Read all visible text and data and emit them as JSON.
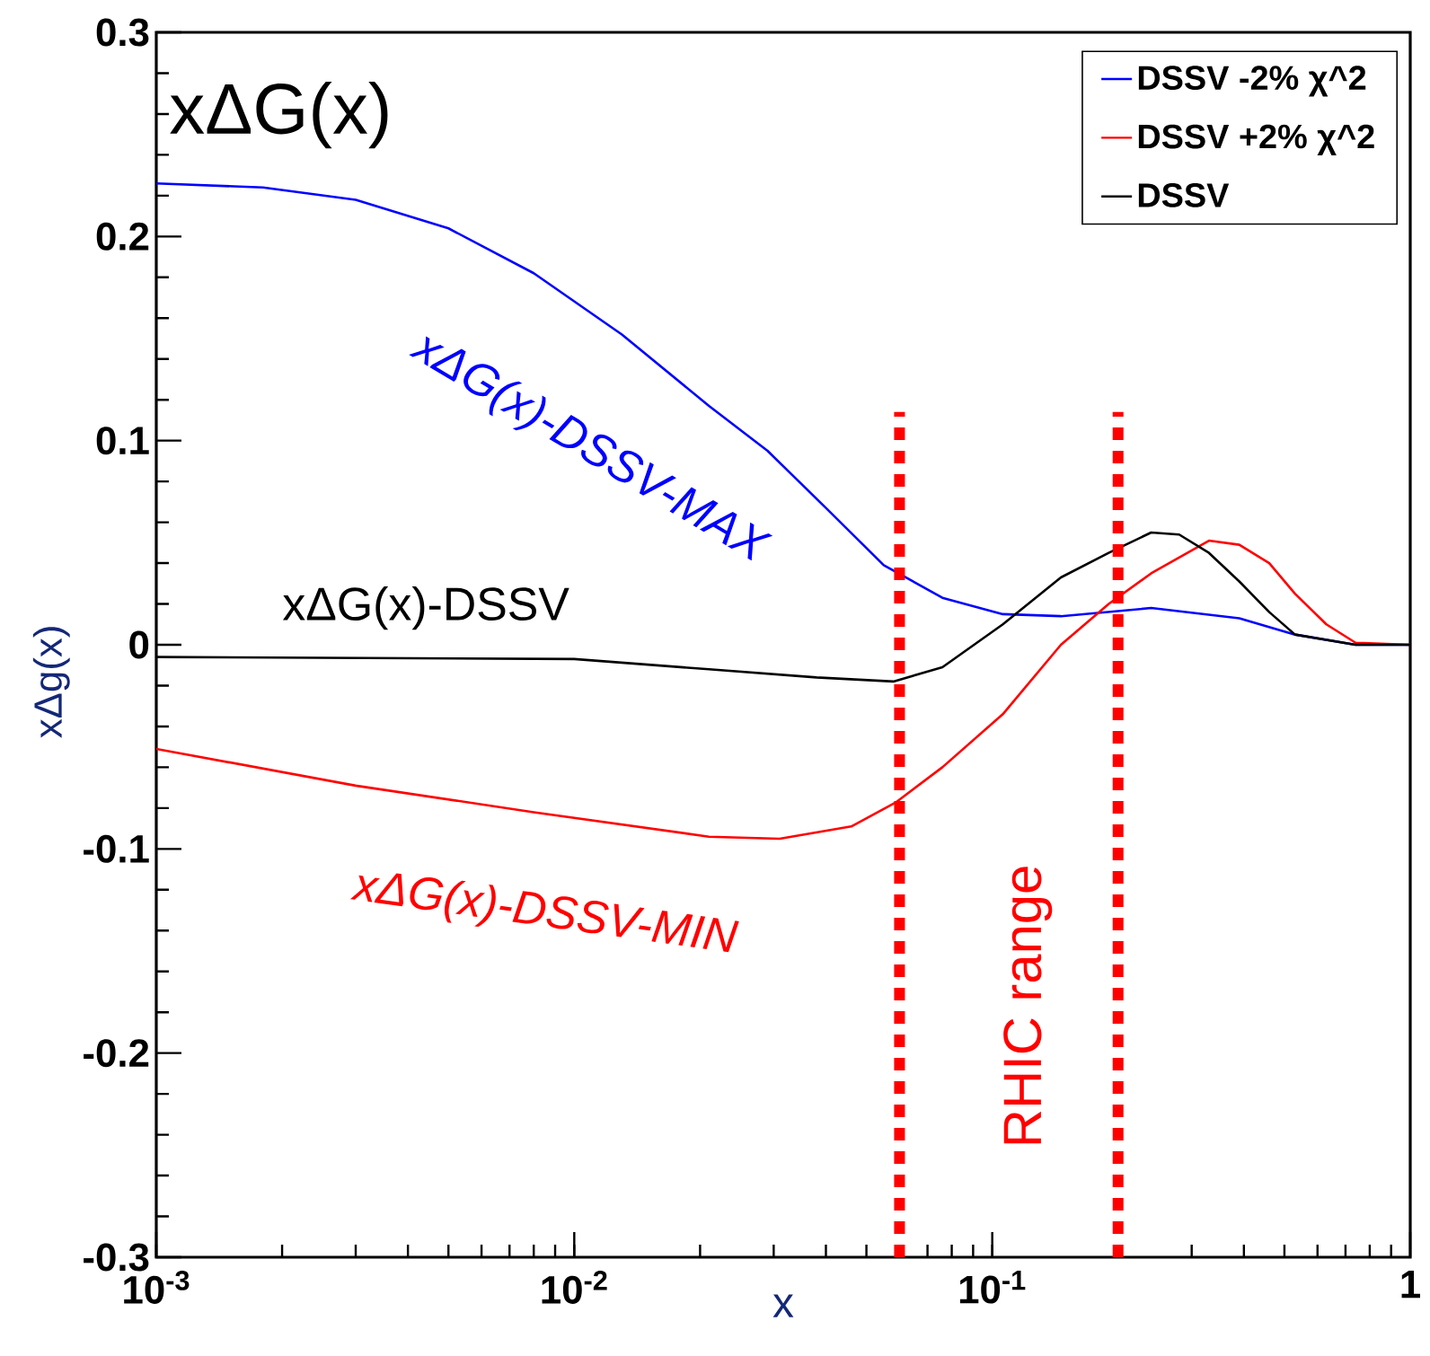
{
  "chart_data": {
    "type": "line",
    "title": "xΔG(x)",
    "xlabel": "x",
    "ylabel": "xΔg(x)",
    "log": "x",
    "xlim": [
      0.001,
      1
    ],
    "ylim": [
      -0.3,
      0.3
    ],
    "xticks": [
      {
        "value": 0.001,
        "label": "10$^{-3}$"
      },
      {
        "value": 0.01,
        "label": "10$^{-2}$"
      },
      {
        "value": 0.1,
        "label": "10$^{-1}$"
      },
      {
        "value": 1,
        "label": "1"
      }
    ],
    "yticks": [
      -0.3,
      -0.2,
      -0.1,
      0,
      0.1,
      0.2,
      0.3
    ],
    "legend": "top right",
    "series": [
      {
        "name": "DSSV -2% χ^2",
        "color": "#0000ff",
        "x": [
          0.001,
          0.0018,
          0.003,
          0.005,
          0.008,
          0.013,
          0.021,
          0.029,
          0.04,
          0.055,
          0.076,
          0.106,
          0.146,
          0.24,
          0.39,
          0.53,
          0.74,
          1
        ],
        "values": [
          0.226,
          0.224,
          0.218,
          0.204,
          0.182,
          0.152,
          0.117,
          0.095,
          0.067,
          0.039,
          0.023,
          0.015,
          0.014,
          0.018,
          0.013,
          0.005,
          0,
          0
        ]
      },
      {
        "name": "DSSV +2% χ^2",
        "color": "#ff0000",
        "x": [
          0.001,
          0.003,
          0.008,
          0.021,
          0.031,
          0.046,
          0.059,
          0.076,
          0.106,
          0.146,
          0.19,
          0.24,
          0.33,
          0.39,
          0.46,
          0.53,
          0.63,
          0.74,
          1
        ],
        "values": [
          -0.051,
          -0.069,
          -0.082,
          -0.094,
          -0.095,
          -0.089,
          -0.077,
          -0.06,
          -0.034,
          0,
          0.02,
          0.035,
          0.051,
          0.049,
          0.04,
          0.025,
          0.01,
          0.001,
          0
        ]
      },
      {
        "name": "DSSV",
        "color": "#000000",
        "x": [
          0.001,
          0.01,
          0.021,
          0.038,
          0.058,
          0.076,
          0.106,
          0.146,
          0.19,
          0.24,
          0.28,
          0.33,
          0.39,
          0.46,
          0.53,
          0.74,
          1
        ],
        "values": [
          -0.006,
          -0.007,
          -0.012,
          -0.016,
          -0.018,
          -0.011,
          0.01,
          0.033,
          0.045,
          0.055,
          0.054,
          0.045,
          0.031,
          0.016,
          0.005,
          0,
          0
        ]
      }
    ],
    "ref_lines": [
      {
        "axis": "x",
        "value": 0.06,
        "color": "#ff0000",
        "line_style": "dotted"
      },
      {
        "axis": "x",
        "value": 0.2,
        "color": "#ff0000",
        "line_style": "dotted"
      }
    ],
    "annotations": [
      "xΔG(x)-DSSV-MAX",
      "xΔG(x)-DSSV",
      "xΔG(x)-DSSV-MIN",
      "RHIC range"
    ]
  }
}
